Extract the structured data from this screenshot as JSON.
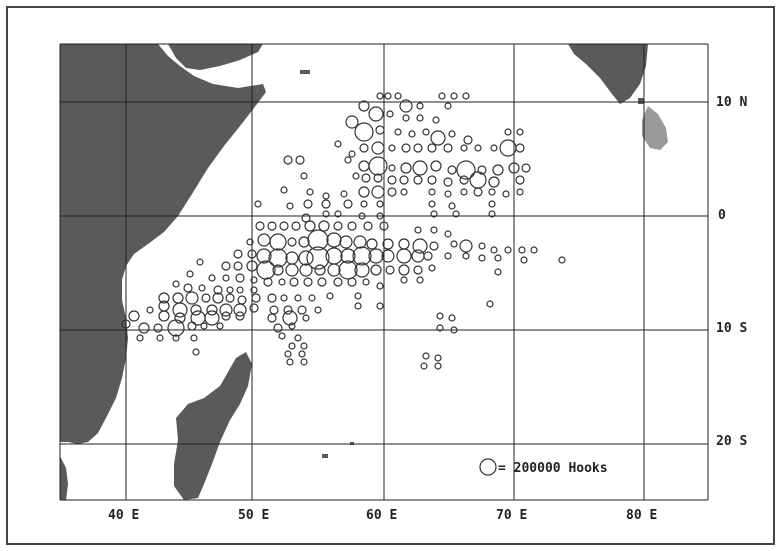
{
  "map": {
    "colors": {
      "land": "#5a5a5a",
      "island_light": "#9a9a9a",
      "grid": "#222222",
      "circle": "#333333",
      "background": "#ffffff"
    },
    "longitude_labels": [
      "40 E",
      "50 E",
      "60 E",
      "70 E",
      "80 E"
    ],
    "latitude_labels": [
      "10 N",
      "0",
      "10 S",
      "20 S"
    ],
    "legend": {
      "label": "= 200000 Hooks"
    }
  }
}
